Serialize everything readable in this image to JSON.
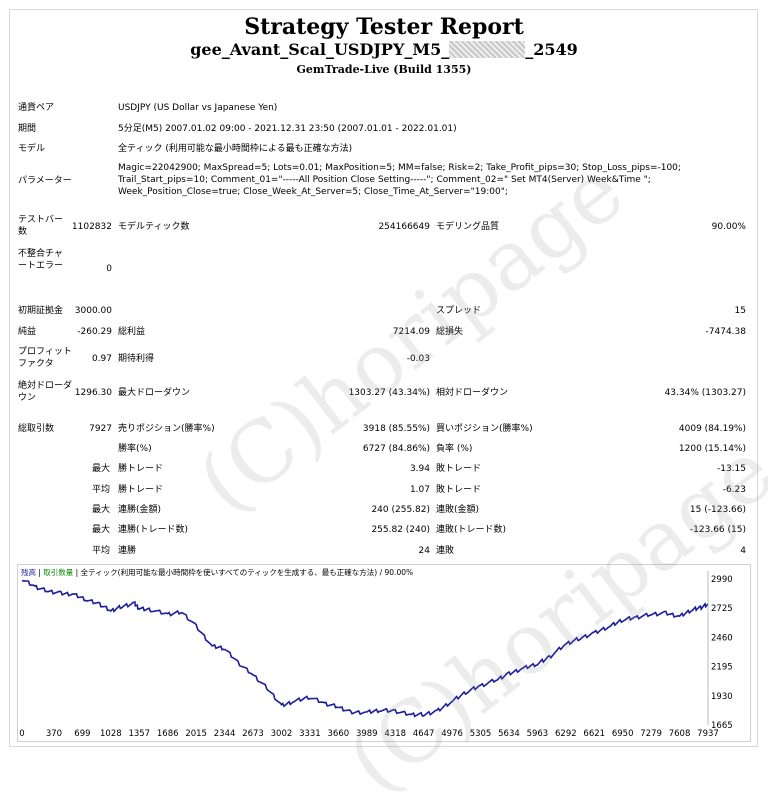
{
  "header": {
    "title": "Strategy Tester Report",
    "ea_name_prefix": "gee_Avant_Scal_USDJPY_M5_",
    "ea_name_suffix": "_2549",
    "broker": "GemTrade-Live (Build 1355)"
  },
  "info": {
    "pair_label": "通貨ペア",
    "pair_value": "USDJPY (US Dollar vs Japanese Yen)",
    "period_label": "期間",
    "period_value": "5分足(M5) 2007.01.02 09:00 - 2021.12.31 23:50 (2007.01.01 - 2022.01.01)",
    "model_label": "モデル",
    "model_value": "全ティック (利用可能な最小時間枠による最も正確な方法)",
    "params_label": "パラメーター",
    "params_value": "Magic=22042900; MaxSpread=5; Lots=0.01; MaxPosition=5; MM=false; Risk=2; Take_Profit_pips=30; Stop_Loss_pips=-100; Trail_Start_pips=10; Comment_01=\"-----All Position Close Setting-----\"; Comment_02=\" Set MT4(Server) Week&Time \"; Week_Position_Close=true; Close_Week_At_Server=5; Close_Time_At_Server=\"19:00\";"
  },
  "bars": {
    "bars_label": "テストバー数",
    "bars_value": "1102832",
    "ticks_label": "モデルティック数",
    "ticks_value": "254166649",
    "quality_label": "モデリング品質",
    "quality_value": "90.00%",
    "mismatch_label": "不整合チャートエラー",
    "mismatch_value": "0"
  },
  "results": {
    "deposit_label": "初期証拠金",
    "deposit_value": "3000.00",
    "spread_label": "スプレッド",
    "spread_value": "15",
    "net_label": "純益",
    "net_value": "-260.29",
    "gross_profit_label": "総利益",
    "gross_profit_value": "7214.09",
    "gross_loss_label": "総損失",
    "gross_loss_value": "-7474.38",
    "pf_label": "プロフィットファクタ",
    "pf_value": "0.97",
    "expect_label": "期待利得",
    "expect_value": "-0.03",
    "abs_dd_label": "絶対ドローダウン",
    "abs_dd_value": "1296.30",
    "max_dd_label": "最大ドローダウン",
    "max_dd_value": "1303.27 (43.34%)",
    "rel_dd_label": "相対ドローダウン",
    "rel_dd_value": "43.34% (1303.27)",
    "total_trades_label": "総取引数",
    "total_trades_value": "7927",
    "short_label": "売りポジション(勝率%)",
    "short_value": "3918 (85.55%)",
    "long_label": "買いポジション(勝率%)",
    "long_value": "4009 (84.19%)",
    "win_rate_label": "勝率(%)",
    "win_rate_value": "6727 (84.86%)",
    "loss_rate_label": "負率 (%)",
    "loss_rate_value": "1200 (15.14%)",
    "max_label": "最大",
    "avg_label": "平均",
    "max_win_label": "勝トレード",
    "max_win_value": "3.94",
    "max_loss_label": "敗トレード",
    "max_loss_value": "-13.15",
    "avg_win_label": "勝トレード",
    "avg_win_value": "1.07",
    "avg_loss_label": "敗トレード",
    "avg_loss_value": "-6.23",
    "consec_win_amt_label": "連勝(金額)",
    "consec_win_amt_value": "240 (255.82)",
    "consec_loss_amt_label": "連敗(金額)",
    "consec_loss_amt_value": "15 (-123.66)",
    "consec_win_cnt_label": "連勝(トレード数)",
    "consec_win_cnt_value": "255.82 (240)",
    "consec_loss_cnt_label": "連敗(トレード数)",
    "consec_loss_cnt_value": "-123.66 (15)",
    "avg_consec_win_label": "連勝",
    "avg_consec_win_value": "24",
    "avg_consec_loss_label": "連敗",
    "avg_consec_loss_value": "4"
  },
  "watermark": "(C)horipage",
  "chart_data": {
    "type": "line",
    "legend": {
      "balance": "残高",
      "lots": "取引数量",
      "model": "全ティック(利用可能な最小時間枠を使いすべてのティックを生成する、最も正確な方法)",
      "quality": "90.00%"
    },
    "x_ticks": [
      0,
      370,
      699,
      1028,
      1357,
      1686,
      2015,
      2344,
      2673,
      3002,
      3331,
      3660,
      3989,
      4318,
      4647,
      4976,
      5305,
      5634,
      5963,
      6292,
      6621,
      6950,
      7279,
      7608,
      7937
    ],
    "y_ticks": [
      2990,
      2725,
      2460,
      2195,
      1930,
      1665
    ],
    "xlim": [
      0,
      7937
    ],
    "ylim": [
      1665,
      2990
    ],
    "x": [
      0,
      150,
      300,
      450,
      600,
      750,
      900,
      1028,
      1150,
      1300,
      1357,
      1500,
      1686,
      1850,
      2015,
      2200,
      2344,
      2500,
      2673,
      2850,
      3002,
      3150,
      3331,
      3500,
      3660,
      3800,
      3989,
      4150,
      4318,
      4500,
      4647,
      4800,
      4976,
      5150,
      5305,
      5500,
      5634,
      5800,
      5963,
      6100,
      6292,
      6450,
      6621,
      6800,
      6950,
      7100,
      7279,
      7450,
      7608,
      7750,
      7850,
      7937
    ],
    "y": [
      2990,
      2920,
      2880,
      2860,
      2850,
      2800,
      2760,
      2700,
      2740,
      2770,
      2720,
      2710,
      2670,
      2690,
      2560,
      2380,
      2360,
      2230,
      2120,
      1990,
      1840,
      1880,
      1920,
      1860,
      1830,
      1780,
      1780,
      1800,
      1790,
      1760,
      1760,
      1790,
      1880,
      1970,
      2020,
      2080,
      2130,
      2180,
      2220,
      2280,
      2400,
      2450,
      2500,
      2560,
      2620,
      2640,
      2670,
      2680,
      2650,
      2710,
      2730,
      2760
    ],
    "line_color": "#1c1c9c",
    "grid": false
  }
}
